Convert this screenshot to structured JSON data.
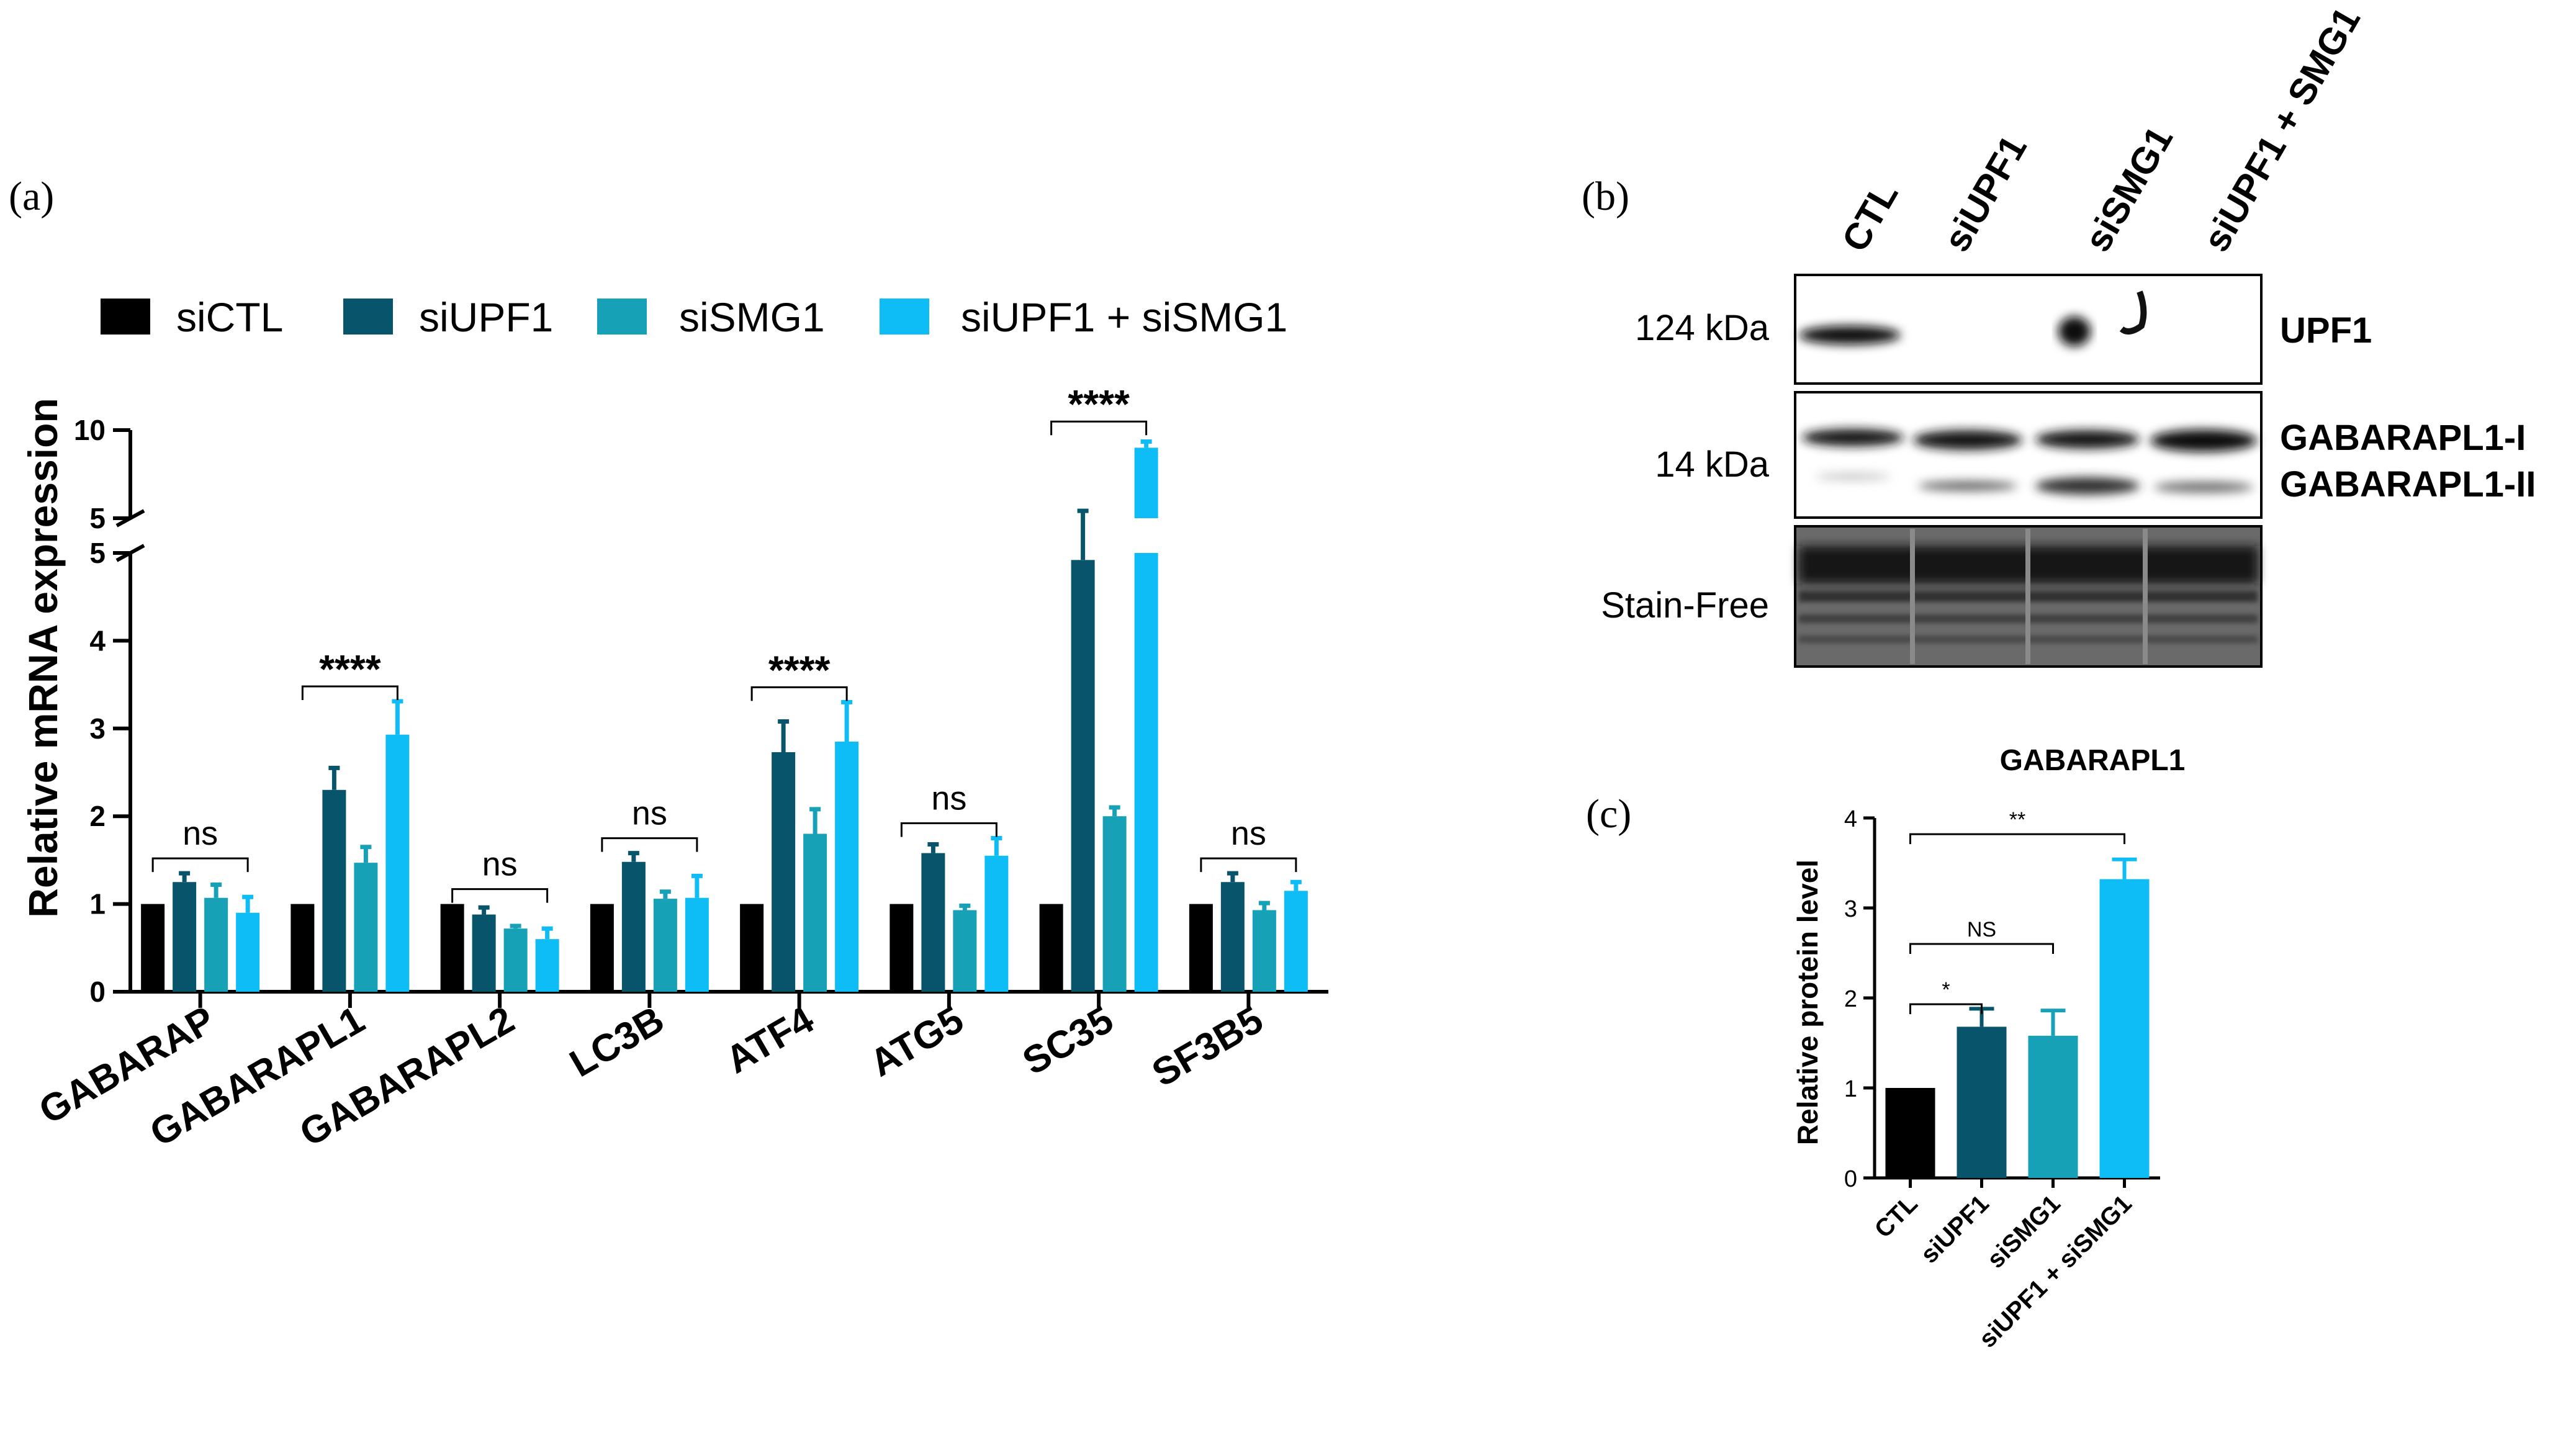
{
  "colors": {
    "siCTL": "#000000",
    "siUPF1": "#07546b",
    "siSMG1": "#16a1b7",
    "siUPF1_siSMG1": "#0fbdf6",
    "axis": "#000000"
  },
  "panel_labels": {
    "a": "(a)",
    "b": "(b)",
    "c": "(c)"
  },
  "legend": {
    "items": [
      {
        "label": "siCTL",
        "color": "#000000"
      },
      {
        "label": "siUPF1",
        "color": "#07546b"
      },
      {
        "label": "siSMG1",
        "color": "#16a1b7"
      },
      {
        "label": "siUPF1 + siSMG1",
        "color": "#0fbdf6"
      }
    ]
  },
  "chart_data": [
    {
      "type": "bar",
      "panel": "(a)",
      "title": "",
      "xlabel": "",
      "ylabel": "Relative mRNA expression",
      "categories": [
        "GABARAP",
        "GABARAPL1",
        "GABARAPL2",
        "LC3B",
        "ATF4",
        "ATG5",
        "SC35",
        "SF3B5"
      ],
      "series": [
        {
          "name": "siCTL",
          "color": "#000000",
          "values": [
            1,
            1,
            1,
            1,
            1,
            1,
            1,
            1
          ],
          "errors": [
            0,
            0,
            0,
            0,
            0,
            0,
            0,
            0
          ]
        },
        {
          "name": "siUPF1",
          "color": "#07546b",
          "values": [
            1.25,
            2.3,
            0.88,
            1.48,
            2.73,
            1.58,
            4.92,
            1.25
          ],
          "errors": [
            0.1,
            0.25,
            0.08,
            0.1,
            0.35,
            0.1,
            0.5,
            0.1
          ]
        },
        {
          "name": "siSMG1",
          "color": "#16a1b7",
          "values": [
            1.07,
            1.47,
            0.72,
            1.06,
            1.8,
            0.93,
            2.0,
            0.93
          ],
          "errors": [
            0.15,
            0.18,
            0.03,
            0.08,
            0.28,
            0.05,
            0.1,
            0.08
          ]
        },
        {
          "name": "siUPF1 + siSMG1",
          "color": "#0fbdf6",
          "values": [
            0.9,
            2.93,
            0.6,
            1.07,
            2.85,
            1.55,
            9.0,
            1.15
          ],
          "errors": [
            0.18,
            0.38,
            0.12,
            0.25,
            0.45,
            0.2,
            0.35,
            0.1
          ]
        }
      ],
      "ylim": [
        0,
        10
      ],
      "y_axis_break": [
        5,
        5
      ],
      "yticks_lower": [
        0,
        1,
        2,
        3,
        4,
        5
      ],
      "yticks_upper": [
        5,
        10
      ],
      "significance": [
        "ns",
        "****",
        "ns",
        "ns",
        "****",
        "ns",
        "****",
        "ns"
      ],
      "grid": false,
      "legend_position": "top"
    },
    {
      "type": "bar",
      "panel": "(c)",
      "title": "GABARAPL1",
      "xlabel": "",
      "ylabel": "Relative protein level",
      "categories": [
        "CTL",
        "siUPF1",
        "siSMG1",
        "siUPF1 + siSMG1"
      ],
      "colors": [
        "#000000",
        "#07546b",
        "#16a1b7",
        "#0fbdf6"
      ],
      "values": [
        1.0,
        1.68,
        1.58,
        3.32
      ],
      "errors": [
        0,
        0.2,
        0.28,
        0.22
      ],
      "ylim": [
        0,
        4
      ],
      "yticks": [
        0,
        1,
        2,
        3,
        4
      ],
      "comparisons": [
        {
          "from": "CTL",
          "to": "siUPF1",
          "label": "*"
        },
        {
          "from": "CTL",
          "to": "siSMG1",
          "label": "NS"
        },
        {
          "from": "CTL",
          "to": "siUPF1 + siSMG1",
          "label": "**"
        }
      ],
      "grid": false
    }
  ],
  "western_blot": {
    "lanes": [
      "CTL",
      "siUPF1",
      "siSMG1",
      "siUPF1 + SMG1"
    ],
    "markers": [
      "124 kDa",
      "14 kDa",
      "Stain-Free"
    ],
    "bands": [
      "UPF1",
      "GABARAPL1-I",
      "GABARAPL1-II"
    ]
  }
}
